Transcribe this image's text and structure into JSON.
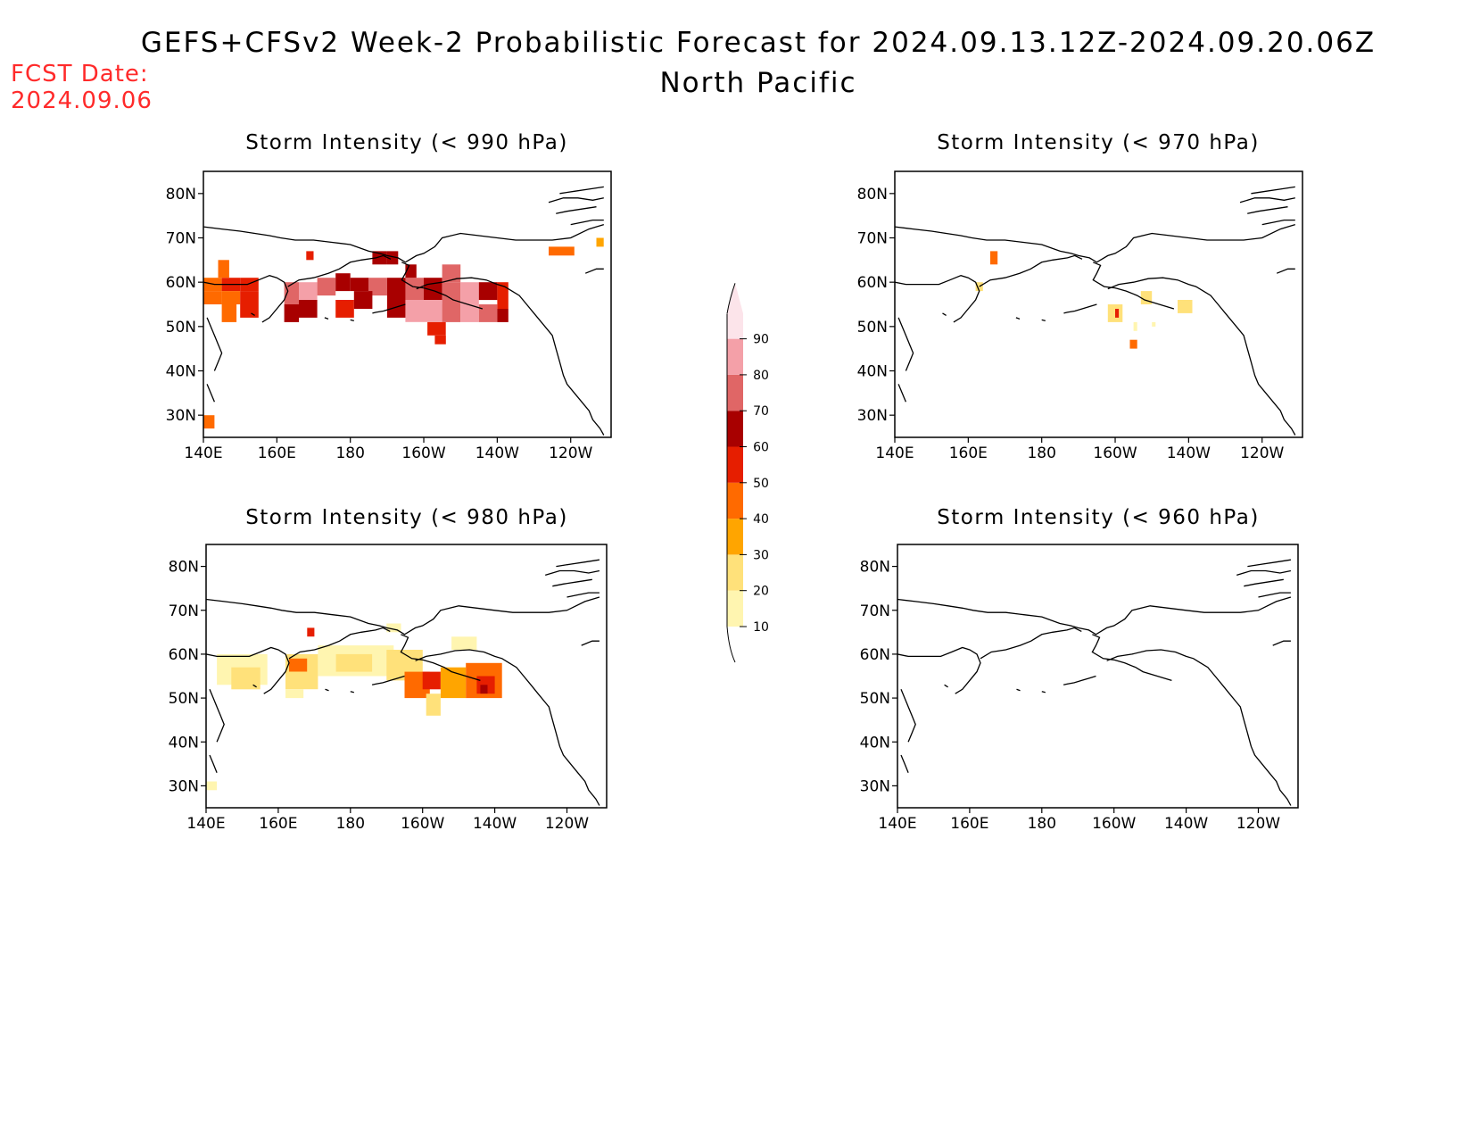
{
  "header": {
    "title": "GEFS+CFSv2 Week-2 Probabilistic Forecast for 2024.09.13.12Z-2024.09.20.06Z",
    "region": "North Pacific",
    "fcst_label": "FCST Date:",
    "fcst_date": "2024.09.06"
  },
  "axes": {
    "lon_ticks": [
      {
        "lon": 140,
        "label": "140E"
      },
      {
        "lon": 160,
        "label": "160E"
      },
      {
        "lon": 180,
        "label": "180"
      },
      {
        "lon": 200,
        "label": "160W"
      },
      {
        "lon": 220,
        "label": "140W"
      },
      {
        "lon": 240,
        "label": "120W"
      }
    ],
    "lat_ticks": [
      {
        "lat": 30,
        "label": "30N"
      },
      {
        "lat": 40,
        "label": "40N"
      },
      {
        "lat": 50,
        "label": "50N"
      },
      {
        "lat": 60,
        "label": "60N"
      },
      {
        "lat": 70,
        "label": "70N"
      },
      {
        "lat": 80,
        "label": "80N"
      }
    ],
    "lon_range": [
      140,
      251
    ],
    "lat_range": [
      25,
      85
    ]
  },
  "colorbar": {
    "levels": [
      10,
      20,
      30,
      40,
      50,
      60,
      70,
      80,
      90
    ],
    "colors": [
      "#fff5b0",
      "#ffe17a",
      "#ffa500",
      "#ff6a00",
      "#e61e00",
      "#a80000",
      "#e06666",
      "#f4a0a8",
      "#fce4ea"
    ]
  },
  "panels": [
    {
      "id": "p990",
      "title": "Storm Intensity (< 990 hPa)",
      "cells": [
        [
          140,
          58,
          145,
          61,
          40
        ],
        [
          145,
          58,
          150,
          61,
          50
        ],
        [
          150,
          58,
          155,
          61,
          50
        ],
        [
          144,
          61,
          147,
          65,
          40
        ],
        [
          140,
          55,
          145,
          58,
          40
        ],
        [
          145,
          55,
          150,
          58,
          40
        ],
        [
          150,
          52,
          155,
          58,
          50
        ],
        [
          145,
          51,
          149,
          55,
          40
        ],
        [
          140,
          27,
          143,
          30,
          40
        ],
        [
          162,
          55,
          166,
          60,
          70
        ],
        [
          166,
          56,
          171,
          60,
          80
        ],
        [
          171,
          57,
          176,
          61,
          70
        ],
        [
          176,
          58,
          180,
          62,
          60
        ],
        [
          180,
          58,
          185,
          61,
          60
        ],
        [
          185,
          57,
          190,
          61,
          70
        ],
        [
          190,
          56,
          195,
          61,
          60
        ],
        [
          195,
          56,
          200,
          61,
          70
        ],
        [
          200,
          56,
          205,
          61,
          60
        ],
        [
          205,
          55,
          210,
          60,
          70
        ],
        [
          210,
          55,
          215,
          60,
          80
        ],
        [
          215,
          56,
          220,
          60,
          60
        ],
        [
          220,
          54,
          223,
          60,
          50
        ],
        [
          162,
          51,
          166,
          55,
          60
        ],
        [
          166,
          52,
          171,
          56,
          60
        ],
        [
          176,
          52,
          181,
          56,
          50
        ],
        [
          181,
          54,
          186,
          58,
          60
        ],
        [
          190,
          52,
          195,
          56,
          60
        ],
        [
          195,
          51,
          200,
          56,
          80
        ],
        [
          200,
          51,
          205,
          56,
          80
        ],
        [
          205,
          51,
          210,
          55,
          70
        ],
        [
          210,
          51,
          215,
          55,
          80
        ],
        [
          215,
          51,
          220,
          55,
          70
        ],
        [
          220,
          51,
          223,
          54,
          60
        ],
        [
          201,
          48,
          206,
          51,
          50
        ],
        [
          203,
          46,
          206,
          48,
          50
        ],
        [
          186,
          64,
          190,
          67,
          60
        ],
        [
          190,
          64,
          193,
          67,
          60
        ],
        [
          168,
          65,
          170,
          67,
          50
        ],
        [
          195,
          61,
          198,
          64,
          60
        ],
        [
          205,
          60,
          210,
          64,
          70
        ],
        [
          234,
          66,
          241,
          68,
          40
        ],
        [
          247,
          68,
          249,
          70,
          30
        ]
      ]
    },
    {
      "id": "p970",
      "title": "Storm Intensity (< 970 hPa)",
      "cells": [
        [
          166,
          64,
          168,
          67,
          40
        ],
        [
          162,
          58,
          164,
          60,
          20
        ],
        [
          198,
          51,
          202,
          55,
          20
        ],
        [
          200,
          52,
          201,
          54,
          50
        ],
        [
          207,
          55,
          210,
          58,
          20
        ],
        [
          217,
          53,
          221,
          56,
          20
        ],
        [
          205,
          49,
          206,
          51,
          10
        ],
        [
          210,
          50,
          211,
          51,
          10
        ],
        [
          204,
          45,
          206,
          47,
          40
        ]
      ]
    },
    {
      "id": "p980",
      "title": "Storm Intensity (< 980 hPa)",
      "cells": [
        [
          143,
          53,
          157,
          60,
          10
        ],
        [
          147,
          52,
          155,
          57,
          20
        ],
        [
          162,
          52,
          171,
          60,
          20
        ],
        [
          163,
          56,
          168,
          59,
          40
        ],
        [
          171,
          55,
          192,
          62,
          10
        ],
        [
          176,
          56,
          186,
          60,
          20
        ],
        [
          190,
          54,
          200,
          61,
          20
        ],
        [
          195,
          50,
          202,
          56,
          40
        ],
        [
          200,
          52,
          205,
          56,
          50
        ],
        [
          205,
          50,
          212,
          57,
          30
        ],
        [
          212,
          50,
          222,
          58,
          40
        ],
        [
          215,
          51,
          220,
          55,
          50
        ],
        [
          216,
          51,
          218,
          53,
          60
        ],
        [
          201,
          46,
          205,
          51,
          20
        ],
        [
          168,
          64,
          170,
          66,
          50
        ],
        [
          190,
          65,
          194,
          67,
          10
        ],
        [
          208,
          61,
          215,
          64,
          10
        ],
        [
          140,
          29,
          143,
          31,
          10
        ],
        [
          162,
          50,
          167,
          52,
          10
        ]
      ]
    },
    {
      "id": "p960",
      "title": "Storm Intensity (< 960 hPa)",
      "cells": []
    }
  ]
}
